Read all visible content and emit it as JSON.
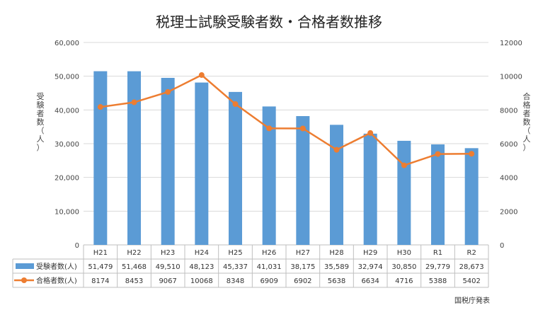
{
  "chart_data": {
    "type": "bar+line",
    "title": "税理士試験受験者数・合格者数推移",
    "categories": [
      "H21",
      "H22",
      "H23",
      "H24",
      "H25",
      "H26",
      "H27",
      "H28",
      "H29",
      "H30",
      "R1",
      "R2"
    ],
    "series": [
      {
        "name": "受験者数(人)",
        "type": "bar",
        "axis": "left",
        "color": "#5b9bd5",
        "values": [
          51479,
          51468,
          49510,
          48123,
          45337,
          41031,
          38175,
          35589,
          32974,
          30850,
          29779,
          28673
        ],
        "labels": [
          "51,479",
          "51,468",
          "49,510",
          "48,123",
          "45,337",
          "41,031",
          "38,175",
          "35,589",
          "32,974",
          "30,850",
          "29,779",
          "28,673"
        ]
      },
      {
        "name": "合格者数(人)",
        "type": "line",
        "axis": "right",
        "color": "#ed7d31",
        "values": [
          8174,
          8453,
          9067,
          10068,
          8348,
          6909,
          6902,
          5638,
          6634,
          4716,
          5388,
          5402
        ],
        "labels": [
          "8174",
          "8453",
          "9067",
          "10068",
          "8348",
          "6909",
          "6902",
          "5638",
          "6634",
          "4716",
          "5388",
          "5402"
        ]
      }
    ],
    "y_left": {
      "label": "受験者数(人)",
      "label_chars": [
        "受",
        "験",
        "者",
        "数",
        "（",
        "人",
        "）"
      ],
      "range": [
        0,
        60000
      ],
      "ticks": [
        0,
        10000,
        20000,
        30000,
        40000,
        50000,
        60000
      ],
      "tick_labels": [
        "0",
        "10,000",
        "20,000",
        "30,000",
        "40,000",
        "50,000",
        "60,000"
      ]
    },
    "y_right": {
      "label": "合格者数(人)",
      "label_chars": [
        "合",
        "格",
        "者",
        "数",
        "（",
        "人",
        "）"
      ],
      "range": [
        0,
        12000
      ],
      "ticks": [
        0,
        2000,
        4000,
        6000,
        8000,
        10000,
        12000
      ],
      "tick_labels": [
        "0",
        "2000",
        "4000",
        "6000",
        "8000",
        "10000",
        "12000"
      ]
    },
    "grid": true,
    "data_table": true,
    "source": "国税庁発表"
  }
}
